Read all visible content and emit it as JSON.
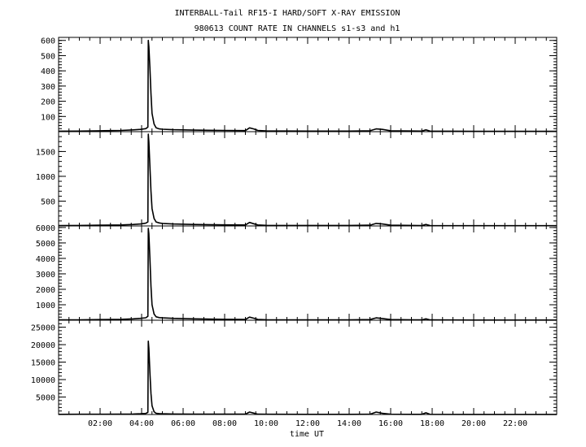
{
  "title": "INTERBALL-Tail RF15-I HARD/SOFT X-RAY EMISSION",
  "subtitle": "980613  COUNT RATE IN CHANNELS s1-s3 and h1",
  "chart_data": {
    "type": "line",
    "title": "INTERBALL-Tail RF15-I HARD/SOFT X-RAY EMISSION",
    "subtitle": "980613  COUNT RATE IN CHANNELS s1-s3 and h1",
    "xlabel": "time UT",
    "x_unit": "hours",
    "xlim": [
      0,
      24
    ],
    "x_ticks": [
      2,
      4,
      6,
      8,
      10,
      12,
      14,
      16,
      18,
      20,
      22
    ],
    "x_tick_labels": [
      "02:00",
      "04:00",
      "06:00",
      "08:00",
      "10:00",
      "12:00",
      "14:00",
      "16:00",
      "18:00",
      "20:00",
      "22:00"
    ],
    "grid": false,
    "panels": [
      {
        "ylim": [
          0,
          620
        ],
        "y_ticks": [
          100,
          200,
          300,
          400,
          500,
          600
        ],
        "x": [
          0,
          1.0,
          2.0,
          3.0,
          3.6,
          3.95,
          4.2,
          4.3,
          4.32,
          4.35,
          4.4,
          4.45,
          4.5,
          4.6,
          4.7,
          4.85,
          5.0,
          5.5,
          6.5,
          8.0,
          9.0,
          9.2,
          9.4,
          9.6,
          10.0,
          12.0,
          14.0,
          15.0,
          15.3,
          15.6,
          16.0,
          17.5,
          17.7,
          17.9,
          20.0,
          24.0
        ],
        "y": [
          3,
          4,
          6,
          8,
          12,
          15,
          20,
          30,
          600,
          560,
          420,
          250,
          120,
          50,
          25,
          18,
          16,
          13,
          10,
          8,
          7,
          25,
          18,
          8,
          5,
          4,
          4,
          6,
          18,
          15,
          6,
          4,
          12,
          4,
          2,
          2
        ]
      },
      {
        "ylim": [
          0,
          1900
        ],
        "y_ticks": [
          500,
          1000,
          1500
        ],
        "x": [
          0,
          1.0,
          2.0,
          3.0,
          3.6,
          3.95,
          4.2,
          4.3,
          4.32,
          4.35,
          4.4,
          4.45,
          4.5,
          4.6,
          4.7,
          4.85,
          5.0,
          5.5,
          6.5,
          8.0,
          9.0,
          9.2,
          9.4,
          9.6,
          10.0,
          12.0,
          14.0,
          15.0,
          15.3,
          15.6,
          16.0,
          17.5,
          17.7,
          17.9,
          20.0,
          24.0
        ],
        "y": [
          8,
          10,
          15,
          20,
          30,
          40,
          55,
          80,
          1850,
          1700,
          1200,
          700,
          350,
          150,
          80,
          60,
          50,
          40,
          30,
          22,
          20,
          70,
          45,
          20,
          12,
          10,
          10,
          15,
          50,
          40,
          15,
          8,
          30,
          8,
          5,
          5
        ]
      },
      {
        "ylim": [
          0,
          6100
        ],
        "y_ticks": [
          1000,
          2000,
          3000,
          4000,
          5000,
          6000
        ],
        "x": [
          0,
          1.0,
          2.0,
          3.0,
          3.6,
          3.95,
          4.2,
          4.3,
          4.32,
          4.35,
          4.4,
          4.45,
          4.5,
          4.6,
          4.7,
          4.85,
          5.0,
          5.5,
          6.5,
          8.0,
          9.0,
          9.2,
          9.4,
          9.6,
          10.0,
          12.0,
          14.0,
          15.0,
          15.3,
          15.6,
          16.0,
          17.5,
          17.7,
          17.9,
          20.0,
          24.0
        ],
        "y": [
          20,
          25,
          40,
          60,
          90,
          120,
          160,
          250,
          5950,
          5600,
          4000,
          2200,
          1000,
          400,
          220,
          170,
          150,
          120,
          90,
          60,
          50,
          200,
          130,
          50,
          30,
          25,
          25,
          40,
          150,
          110,
          40,
          20,
          90,
          20,
          10,
          10
        ]
      },
      {
        "ylim": [
          0,
          27000
        ],
        "y_ticks": [
          5000,
          10000,
          15000,
          20000,
          25000
        ],
        "x": [
          0,
          1.0,
          2.0,
          3.0,
          3.6,
          3.95,
          4.2,
          4.3,
          4.32,
          4.35,
          4.4,
          4.45,
          4.5,
          4.6,
          4.7,
          4.85,
          5.0,
          5.5,
          6.5,
          8.0,
          9.0,
          9.2,
          9.4,
          9.6,
          10.0,
          12.0,
          14.0,
          15.0,
          15.3,
          15.6,
          16.0,
          17.5,
          17.7,
          17.9,
          20.0,
          24.0
        ],
        "y": [
          50,
          60,
          80,
          120,
          150,
          200,
          300,
          600,
          21000,
          19000,
          12000,
          6000,
          2500,
          800,
          350,
          250,
          200,
          150,
          120,
          100,
          90,
          700,
          400,
          100,
          60,
          50,
          50,
          80,
          700,
          350,
          80,
          50,
          500,
          50,
          30,
          30
        ]
      }
    ]
  }
}
